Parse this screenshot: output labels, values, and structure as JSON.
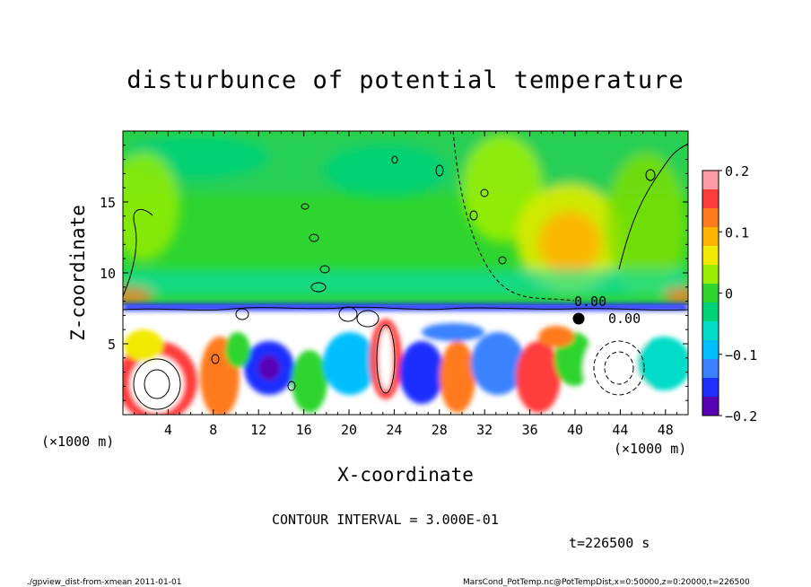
{
  "chart_data": {
    "type": "heatmap",
    "title": "disturbunce of potential temperature",
    "xlabel": "X-coordinate",
    "ylabel": "Z-coordinate",
    "x_unit": "(×1000 m)",
    "y_unit": "(×1000 m)",
    "xlim": [
      0,
      50
    ],
    "ylim": [
      0,
      20
    ],
    "x_ticks": [
      4,
      8,
      12,
      16,
      20,
      24,
      28,
      32,
      36,
      40,
      44,
      48
    ],
    "y_ticks": [
      5,
      10,
      15
    ],
    "colorbar": {
      "range": [
        -0.2,
        0.2
      ],
      "ticks": [
        "0.2",
        "0.1",
        "0",
        "−0.1",
        "−0.2"
      ],
      "colors": [
        "#ff9aa6",
        "#ff3c3c",
        "#ff7a1a",
        "#ffb400",
        "#f2ea00",
        "#9aee00",
        "#2ed52e",
        "#00d27a",
        "#00dcc8",
        "#00bfff",
        "#3a82ff",
        "#1f2fff",
        "#5a00b4"
      ]
    },
    "contour_labels": [
      "0.00",
      "0.00"
    ],
    "contour_interval_text": "CONTOUR INTERVAL = 3.000E-01",
    "time_text": "t=226500 s"
  },
  "footer": {
    "left": "./gpview_dist-from-xmean  2011-01-01",
    "right": "MarsCond_PotTemp.nc@PotTempDist,x=0:50000,z=0:20000,t=226500"
  }
}
